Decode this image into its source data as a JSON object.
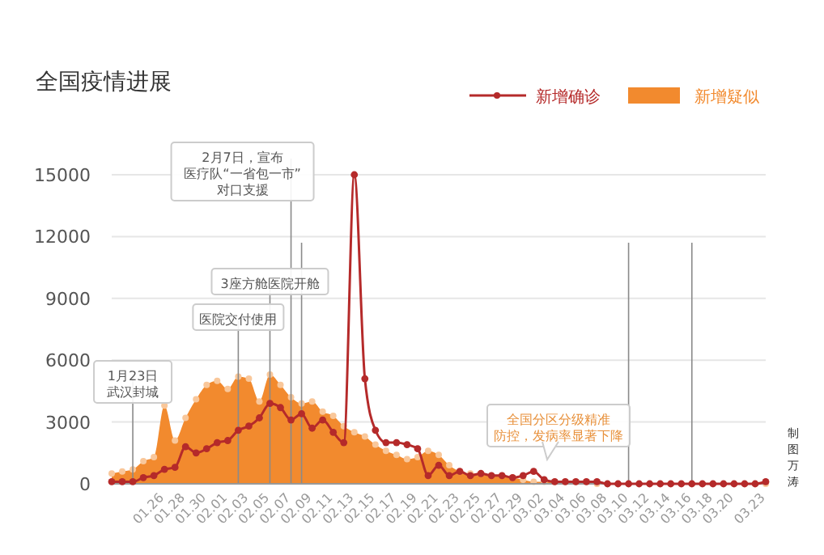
{
  "chart_data": {
    "type": "area",
    "title": "全国疫情进展",
    "x": [
      "--01-21",
      "--01-22",
      "--01-23",
      "--01-24",
      "--01-25",
      "--01-26",
      "--01-27",
      "--01-28",
      "--01-29",
      "--01-30",
      "--01-31",
      "--02-01",
      "--02-02",
      "--02-03",
      "--02-04",
      "--02-05",
      "--02-06",
      "--02-07",
      "--02-08",
      "--02-09",
      "--02-10",
      "--02-11",
      "--02-12",
      "--02-13",
      "--02-14",
      "--02-15",
      "--02-16",
      "--02-17",
      "--02-18",
      "--02-19",
      "--02-20",
      "--02-21",
      "--02-22",
      "--02-23",
      "--02-24",
      "--02-25",
      "--02-26",
      "--02-27",
      "--02-28",
      "--02-29",
      "--03-01",
      "--03-02",
      "--03-03",
      "--03-04",
      "--03-05",
      "--03-06",
      "--03-07",
      "--03-08",
      "--03-09",
      "--03-10",
      "--03-11",
      "--03-12",
      "--03-13",
      "--03-14",
      "--03-15",
      "--03-16",
      "--03-17",
      "--03-18",
      "--03-19",
      "--03-20",
      "--03-21",
      "--03-22",
      "--03-23"
    ],
    "series": [
      {
        "name": "新增疑似",
        "color": "#f28a2e",
        "marker": "circle",
        "values": [
          500,
          600,
          700,
          1100,
          1300,
          3800,
          2100,
          3200,
          4100,
          4800,
          5000,
          4600,
          5200,
          5100,
          4000,
          5300,
          4800,
          4200,
          3900,
          4000,
          3500,
          3300,
          2800,
          2500,
          2300,
          1900,
          1600,
          1400,
          1200,
          1300,
          1600,
          1400,
          900,
          600,
          500,
          500,
          400,
          400,
          300,
          200,
          100,
          100,
          100,
          100,
          100,
          100,
          0,
          0,
          0,
          0,
          0,
          0,
          0,
          0,
          0,
          0,
          0,
          0,
          0,
          0,
          0,
          0,
          0
        ]
      },
      {
        "name": "新增确诊",
        "type": "line",
        "color": "#b52a2a",
        "marker": "circle",
        "values": [
          100,
          100,
          100,
          300,
          400,
          700,
          800,
          1800,
          1500,
          1700,
          2000,
          2100,
          2600,
          2800,
          3200,
          3900,
          3700,
          3100,
          3400,
          2700,
          3100,
          2500,
          2000,
          15000,
          5100,
          2600,
          2000,
          2000,
          1900,
          1700,
          400,
          900,
          400,
          600,
          400,
          500,
          400,
          400,
          300,
          400,
          600,
          200,
          100,
          100,
          100,
          100,
          100,
          0,
          0,
          0,
          0,
          0,
          0,
          0,
          0,
          0,
          0,
          0,
          0,
          0,
          0,
          0,
          100
        ]
      }
    ],
    "xlim": [
      "--01-21",
      "--03-23"
    ],
    "xticks": [
      {
        "value": "--01-26",
        "label": "01.26"
      },
      {
        "value": "--01-28",
        "label": "01.28"
      },
      {
        "value": "--01-30",
        "label": "01.30"
      },
      {
        "value": "--02-01",
        "label": "02.01"
      },
      {
        "value": "--02-03",
        "label": "02.03"
      },
      {
        "value": "--02-05",
        "label": "02.05"
      },
      {
        "value": "--02-07",
        "label": "02.07"
      },
      {
        "value": "--02-09",
        "label": "02.09"
      },
      {
        "value": "--02-11",
        "label": "02.11"
      },
      {
        "value": "--02-13",
        "label": "02.13"
      },
      {
        "value": "--02-15",
        "label": "02.15"
      },
      {
        "value": "--02-17",
        "label": "02.17"
      },
      {
        "value": "--02-19",
        "label": "02.19"
      },
      {
        "value": "--02-21",
        "label": "02.21"
      },
      {
        "value": "--02-23",
        "label": "02.23"
      },
      {
        "value": "--02-25",
        "label": "02.25"
      },
      {
        "value": "--02-27",
        "label": "02.27"
      },
      {
        "value": "--02-29",
        "label": "02.29"
      },
      {
        "value": "--03-02",
        "label": "03.02"
      },
      {
        "value": "--03-04",
        "label": "03.04"
      },
      {
        "value": "--03-06",
        "label": "03.06"
      },
      {
        "value": "--03-08",
        "label": "03.08"
      },
      {
        "value": "--03-10",
        "label": "03.10"
      },
      {
        "value": "--03-12",
        "label": "03.12"
      },
      {
        "value": "--03-14",
        "label": "03.14"
      },
      {
        "value": "--03-16",
        "label": "03.16"
      },
      {
        "value": "--03-18",
        "label": "03.18"
      },
      {
        "value": "--03-20",
        "label": "03.20"
      },
      {
        "value": "--03-23",
        "label": "03.23"
      }
    ],
    "ylim": [
      0,
      15000
    ],
    "yticks": [
      0,
      3000,
      6000,
      9000,
      12000,
      15000
    ],
    "grid": "y",
    "legend": "top right",
    "ref_lines": [
      {
        "axis": "x",
        "value": "--01-23",
        "label": "1月23日武汉封城"
      },
      {
        "axis": "x",
        "value": "--02-02",
        "label": "医院交付使用"
      },
      {
        "axis": "x",
        "value": "--02-05",
        "label": "3座方舱医院开舱"
      },
      {
        "axis": "x",
        "value": "--02-07",
        "label": "2月7日，宣布医疗队“一省包一市”对口支援"
      },
      {
        "axis": "x",
        "value": "--02-08",
        "label": null
      },
      {
        "axis": "x",
        "value": "--03-10",
        "label": null
      },
      {
        "axis": "x",
        "value": "--03-16",
        "label": null
      }
    ],
    "annotations": [
      "全国分区分级精准防控，发病率显著下降",
      "制图万涛"
    ]
  }
}
